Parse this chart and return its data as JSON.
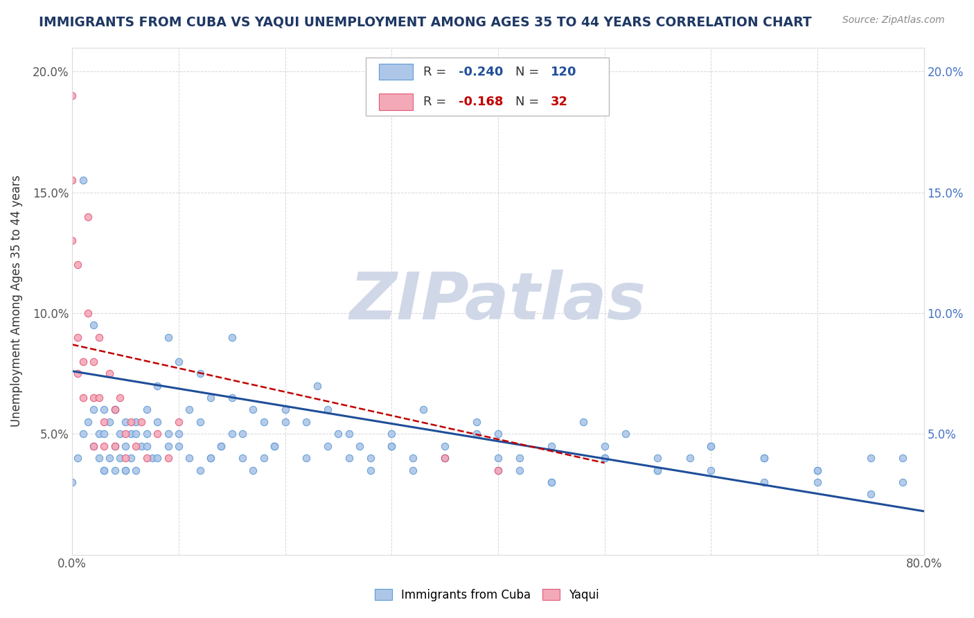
{
  "title": "IMMIGRANTS FROM CUBA VS YAQUI UNEMPLOYMENT AMONG AGES 35 TO 44 YEARS CORRELATION CHART",
  "source": "Source: ZipAtlas.com",
  "ylabel": "Unemployment Among Ages 35 to 44 years",
  "xlim": [
    0.0,
    0.8
  ],
  "ylim": [
    0.0,
    0.21
  ],
  "x_ticks": [
    0.0,
    0.1,
    0.2,
    0.3,
    0.4,
    0.5,
    0.6,
    0.7,
    0.8
  ],
  "y_ticks": [
    0.0,
    0.05,
    0.1,
    0.15,
    0.2
  ],
  "cuba_color": "#aec6e8",
  "cuba_edge_color": "#5b9bd5",
  "yaqui_color": "#f4a9b8",
  "yaqui_edge_color": "#e05878",
  "cuba_R": -0.24,
  "cuba_N": 120,
  "yaqui_R": -0.168,
  "yaqui_N": 32,
  "trend_cuba_color": "#1f4e99",
  "trend_yaqui_color": "#c00000",
  "watermark": "ZIPatlas",
  "watermark_color": "#d0d8e8",
  "legend_R_color_cuba": "#1f4e99",
  "legend_R_color_yaqui": "#c00000",
  "cuba_scatter_x": [
    0.0,
    0.005,
    0.01,
    0.015,
    0.02,
    0.02,
    0.025,
    0.025,
    0.03,
    0.03,
    0.03,
    0.035,
    0.035,
    0.04,
    0.04,
    0.04,
    0.045,
    0.045,
    0.05,
    0.05,
    0.05,
    0.055,
    0.055,
    0.06,
    0.06,
    0.065,
    0.07,
    0.07,
    0.075,
    0.08,
    0.08,
    0.09,
    0.09,
    0.1,
    0.1,
    0.11,
    0.12,
    0.12,
    0.13,
    0.13,
    0.14,
    0.15,
    0.15,
    0.16,
    0.17,
    0.18,
    0.19,
    0.2,
    0.22,
    0.23,
    0.24,
    0.25,
    0.26,
    0.27,
    0.28,
    0.3,
    0.32,
    0.33,
    0.35,
    0.38,
    0.4,
    0.42,
    0.45,
    0.48,
    0.5,
    0.52,
    0.55,
    0.58,
    0.6,
    0.65,
    0.7,
    0.75,
    0.78,
    0.01,
    0.02,
    0.03,
    0.04,
    0.05,
    0.06,
    0.07,
    0.08,
    0.09,
    0.1,
    0.11,
    0.12,
    0.13,
    0.14,
    0.15,
    0.16,
    0.17,
    0.18,
    0.19,
    0.2,
    0.22,
    0.24,
    0.26,
    0.28,
    0.3,
    0.32,
    0.35,
    0.38,
    0.4,
    0.42,
    0.45,
    0.5,
    0.55,
    0.6,
    0.65,
    0.7,
    0.75,
    0.78,
    0.7,
    0.65,
    0.6,
    0.55,
    0.5,
    0.45,
    0.4,
    0.35,
    0.3
  ],
  "cuba_scatter_y": [
    0.03,
    0.04,
    0.05,
    0.055,
    0.06,
    0.045,
    0.05,
    0.04,
    0.035,
    0.05,
    0.06,
    0.04,
    0.055,
    0.035,
    0.045,
    0.06,
    0.04,
    0.05,
    0.035,
    0.045,
    0.055,
    0.04,
    0.05,
    0.035,
    0.055,
    0.045,
    0.05,
    0.06,
    0.04,
    0.055,
    0.07,
    0.045,
    0.09,
    0.05,
    0.08,
    0.06,
    0.055,
    0.075,
    0.04,
    0.065,
    0.045,
    0.09,
    0.065,
    0.05,
    0.06,
    0.055,
    0.045,
    0.06,
    0.055,
    0.07,
    0.06,
    0.05,
    0.04,
    0.045,
    0.035,
    0.05,
    0.04,
    0.06,
    0.045,
    0.055,
    0.05,
    0.04,
    0.045,
    0.055,
    0.04,
    0.05,
    0.035,
    0.04,
    0.045,
    0.04,
    0.035,
    0.04,
    0.03,
    0.155,
    0.095,
    0.035,
    0.06,
    0.035,
    0.05,
    0.045,
    0.04,
    0.05,
    0.045,
    0.04,
    0.035,
    0.04,
    0.045,
    0.05,
    0.04,
    0.035,
    0.04,
    0.045,
    0.055,
    0.04,
    0.045,
    0.05,
    0.04,
    0.045,
    0.035,
    0.04,
    0.05,
    0.04,
    0.035,
    0.03,
    0.045,
    0.04,
    0.035,
    0.03,
    0.03,
    0.025,
    0.04,
    0.035,
    0.04,
    0.045,
    0.035,
    0.04,
    0.03,
    0.035,
    0.04,
    0.045
  ],
  "yaqui_scatter_x": [
    0.0,
    0.0,
    0.0,
    0.005,
    0.005,
    0.005,
    0.01,
    0.01,
    0.015,
    0.015,
    0.02,
    0.02,
    0.02,
    0.025,
    0.025,
    0.03,
    0.03,
    0.035,
    0.04,
    0.04,
    0.045,
    0.05,
    0.05,
    0.055,
    0.06,
    0.065,
    0.07,
    0.08,
    0.09,
    0.1,
    0.35,
    0.4
  ],
  "yaqui_scatter_y": [
    0.19,
    0.155,
    0.13,
    0.12,
    0.09,
    0.075,
    0.08,
    0.065,
    0.14,
    0.1,
    0.08,
    0.065,
    0.045,
    0.09,
    0.065,
    0.055,
    0.045,
    0.075,
    0.045,
    0.06,
    0.065,
    0.05,
    0.04,
    0.055,
    0.045,
    0.055,
    0.04,
    0.05,
    0.04,
    0.055,
    0.04,
    0.035
  ],
  "cuba_trend_x": [
    0.0,
    0.8
  ],
  "cuba_trend_y": [
    0.076,
    0.018
  ],
  "yaqui_trend_x": [
    0.0,
    0.5
  ],
  "yaqui_trend_y": [
    0.087,
    0.038
  ]
}
